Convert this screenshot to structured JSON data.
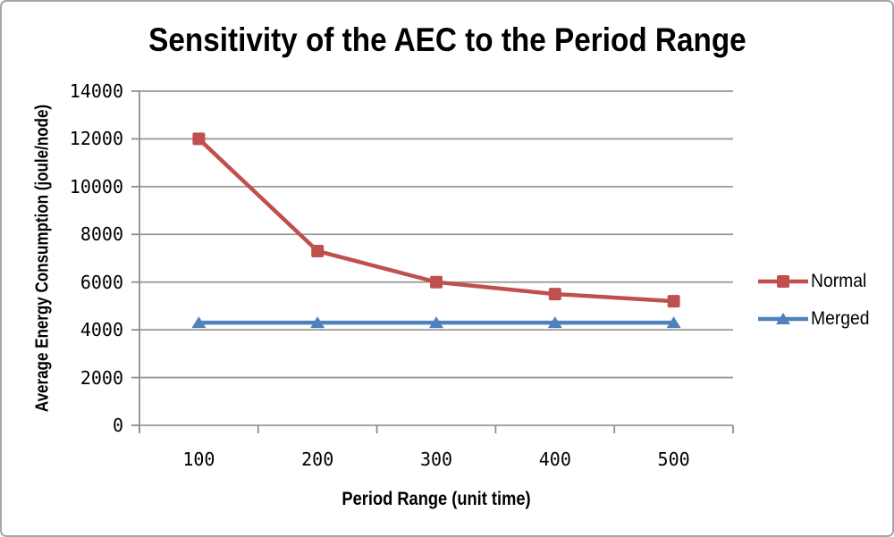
{
  "chart_data": {
    "type": "line",
    "title": "Sensitivity of the AEC to the Period Range",
    "xlabel": "Period Range (unit time)",
    "ylabel": "Average Energy Consumption (joule/node)",
    "categories": [
      "100",
      "200",
      "300",
      "400",
      "500"
    ],
    "y_ticks": [
      0,
      2000,
      4000,
      6000,
      8000,
      10000,
      12000,
      14000
    ],
    "ylim": [
      0,
      14000
    ],
    "grid": "horizontal",
    "legend_position": "right",
    "grid_color": "#989898",
    "axis_color": "#8e8e8e",
    "series": [
      {
        "name": "Normal",
        "marker": "square",
        "color": "#C0504D",
        "values": [
          12000,
          7300,
          6000,
          5500,
          5200
        ]
      },
      {
        "name": "Merged",
        "marker": "triangle",
        "color": "#4F81BD",
        "values": [
          4300,
          4300,
          4300,
          4300,
          4300
        ]
      }
    ]
  }
}
